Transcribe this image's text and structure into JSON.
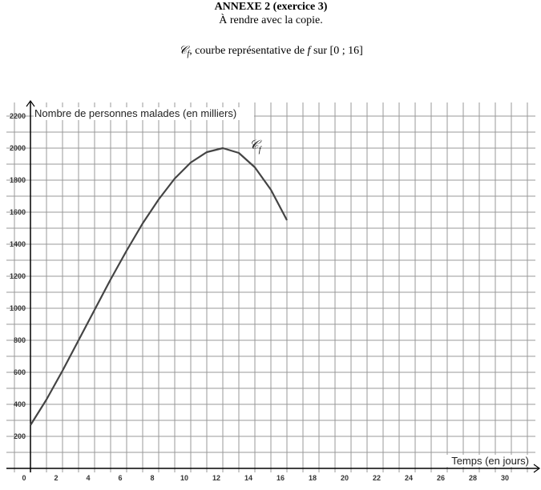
{
  "header": {
    "title": "ANNEXE 2 (exercice 3)",
    "subtitle": "À rendre avec la copie.",
    "caption": {
      "curve": "𝒞",
      "curve_sub": "f",
      "text1": ", courbe représentative de ",
      "var": "f",
      "text2": " sur [0 ; 16]"
    }
  },
  "chart_data": {
    "type": "line",
    "y_label": "Nombre de personnes malades (en milliers)",
    "x_label": "Temps (en jours)",
    "curve_label": {
      "main": "𝒞",
      "sub": "f"
    },
    "x": [
      0,
      1,
      2,
      3,
      4,
      5,
      6,
      7,
      8,
      9,
      10,
      11,
      12,
      13,
      14,
      15,
      16
    ],
    "series": [
      {
        "color": "#444444",
        "values": [
          270,
          430,
          610,
          800,
          990,
          1180,
          1360,
          1530,
          1680,
          1810,
          1910,
          1975,
          2000,
          1970,
          1880,
          1740,
          1550
        ]
      }
    ],
    "xlim": [
      -1.5,
      31.5
    ],
    "ylim": [
      -25,
      2285
    ],
    "xticks": [
      0,
      2,
      4,
      6,
      8,
      10,
      12,
      14,
      16,
      18,
      20,
      22,
      24,
      26,
      28,
      30
    ],
    "yticks": [
      200,
      400,
      600,
      800,
      1000,
      1200,
      1400,
      1600,
      1800,
      2000,
      2200
    ],
    "grid": true
  }
}
